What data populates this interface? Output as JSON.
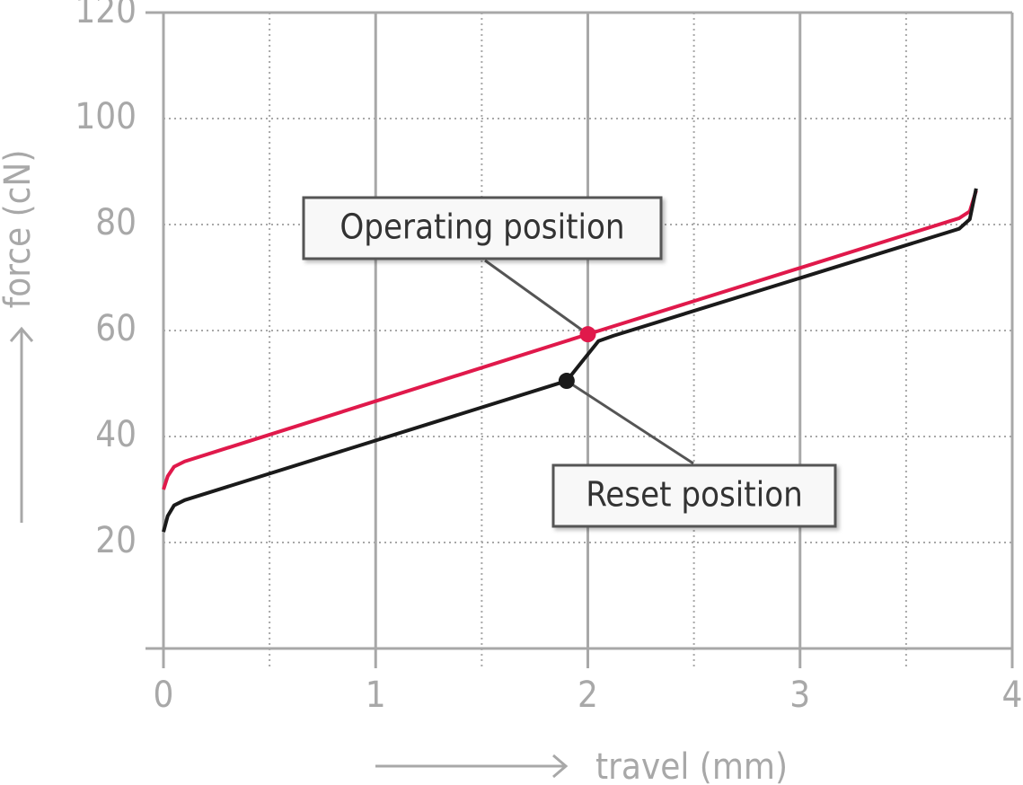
{
  "chart_data": {
    "type": "line",
    "xlabel": "travel (mm)",
    "ylabel": "force (cN)",
    "xlim": [
      0,
      4
    ],
    "ylim": [
      0,
      120
    ],
    "xticks": [
      0,
      1,
      2,
      3,
      4
    ],
    "xminorticks": [
      0.5,
      1.5,
      2.5,
      3.5
    ],
    "yticks": [
      20,
      40,
      60,
      80,
      100,
      120
    ],
    "grid": true,
    "series": [
      {
        "color": "#e0194b",
        "x": [
          0,
          0.02,
          0.05,
          0.1,
          2,
          3.75,
          3.8,
          3.83
        ],
        "values": [
          30,
          32.5,
          34.3,
          35.3,
          59.3,
          81.2,
          82.5,
          86.4
        ]
      },
      {
        "color": "#1a1a1a",
        "x": [
          0,
          0.02,
          0.05,
          0.1,
          1.9,
          1.97,
          2.05,
          2.12,
          3.75,
          3.8,
          3.83
        ],
        "values": [
          22,
          25,
          27,
          28,
          50.5,
          54,
          58,
          59,
          79.2,
          81,
          86.8
        ]
      }
    ],
    "annotations": [
      {
        "text": "Operating position",
        "x": 2,
        "y": 59.3,
        "color": "#e0194b"
      },
      {
        "text": "Reset position",
        "x": 1.9,
        "y": 50.5,
        "color": "#1a1a1a"
      }
    ]
  }
}
